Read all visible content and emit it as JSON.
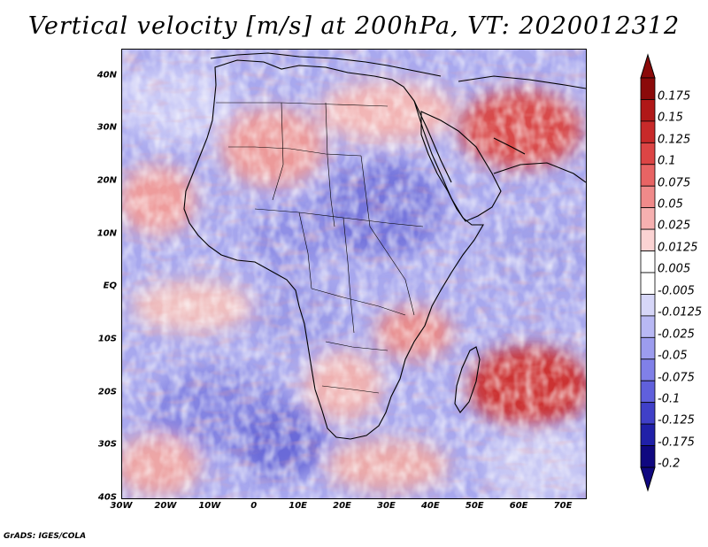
{
  "title": "Vertical velocity [m/s] at 200hPa, VT: 2020012312",
  "footer": "GrADS: IGES/COLA",
  "map": {
    "region": "Africa",
    "lat_range": [
      -40,
      45
    ],
    "lon_range": [
      -30,
      75
    ],
    "lat_ticks": [
      "40N",
      "30N",
      "20N",
      "10N",
      "EQ",
      "10S",
      "20S",
      "30S",
      "40S"
    ],
    "lon_ticks": [
      "30W",
      "20W",
      "10W",
      "0",
      "10E",
      "20E",
      "30E",
      "40E",
      "50E",
      "60E",
      "70E"
    ],
    "lat_values": [
      40,
      30,
      20,
      10,
      0,
      -10,
      -20,
      -30,
      -40
    ],
    "lon_values": [
      -30,
      -20,
      -10,
      0,
      10,
      20,
      30,
      40,
      50,
      60,
      70
    ]
  },
  "colorbar": {
    "labels": [
      "0.175",
      "0.15",
      "0.125",
      "0.1",
      "0.075",
      "0.05",
      "0.025",
      "0.0125",
      "0.005",
      "-0.005",
      "-0.0125",
      "-0.025",
      "-0.05",
      "-0.075",
      "-0.1",
      "-0.125",
      "-0.175",
      "-0.2"
    ],
    "colors": [
      "#8b0a0a",
      "#b01818",
      "#c82a2a",
      "#dc4545",
      "#e86464",
      "#f08a8a",
      "#f6b0b0",
      "#fbd3d3",
      "#ffffff",
      "#ffffff",
      "#d6d6f8",
      "#b8b8f4",
      "#9c9cee",
      "#8080e8",
      "#6060dc",
      "#4040c8",
      "#2020a8",
      "#100880"
    ]
  },
  "colors": {
    "frame": "#000000",
    "coast": "#000000"
  }
}
